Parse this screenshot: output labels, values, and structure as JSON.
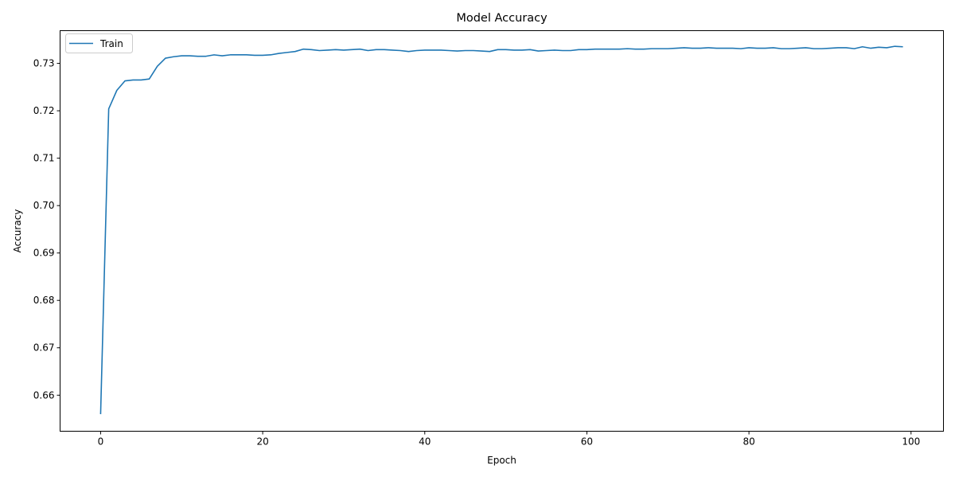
{
  "chart_data": {
    "type": "line",
    "title": "Model Accuracy",
    "xlabel": "Epoch",
    "ylabel": "Accuracy",
    "xlim": [
      -5,
      104
    ],
    "ylim": [
      0.6524,
      0.7369
    ],
    "xticks": [
      0,
      20,
      40,
      60,
      80,
      100
    ],
    "xtick_labels": [
      "0",
      "20",
      "40",
      "60",
      "80",
      "100"
    ],
    "yticks": [
      0.66,
      0.67,
      0.68,
      0.69,
      0.7,
      0.71,
      0.72,
      0.73
    ],
    "ytick_labels": [
      "0.66",
      "0.67",
      "0.68",
      "0.69",
      "0.70",
      "0.71",
      "0.72",
      "0.73"
    ],
    "grid": false,
    "legend_position": "upper-left",
    "series": [
      {
        "name": "Train",
        "color": "#1f77b4",
        "x": [
          0,
          1,
          2,
          3,
          4,
          5,
          6,
          7,
          8,
          9,
          10,
          11,
          12,
          13,
          14,
          15,
          16,
          17,
          18,
          19,
          20,
          21,
          22,
          23,
          24,
          25,
          26,
          27,
          28,
          29,
          30,
          31,
          32,
          33,
          34,
          35,
          36,
          37,
          38,
          39,
          40,
          41,
          42,
          43,
          44,
          45,
          46,
          47,
          48,
          49,
          50,
          51,
          52,
          53,
          54,
          55,
          56,
          57,
          58,
          59,
          60,
          61,
          62,
          63,
          64,
          65,
          66,
          67,
          68,
          69,
          70,
          71,
          72,
          73,
          74,
          75,
          76,
          77,
          78,
          79,
          80,
          81,
          82,
          83,
          84,
          85,
          86,
          87,
          88,
          89,
          90,
          91,
          92,
          93,
          94,
          95,
          96,
          97,
          98,
          99
        ],
        "values": [
          0.656,
          0.7204,
          0.7243,
          0.7263,
          0.7265,
          0.7265,
          0.7267,
          0.7294,
          0.7311,
          0.7314,
          0.7316,
          0.7316,
          0.7315,
          0.7315,
          0.7318,
          0.7316,
          0.7318,
          0.7318,
          0.7318,
          0.7317,
          0.7317,
          0.7318,
          0.7321,
          0.7323,
          0.7325,
          0.733,
          0.7329,
          0.7327,
          0.7328,
          0.7329,
          0.7328,
          0.7329,
          0.733,
          0.7327,
          0.7329,
          0.7329,
          0.7328,
          0.7327,
          0.7325,
          0.7327,
          0.7328,
          0.7328,
          0.7328,
          0.7327,
          0.7326,
          0.7327,
          0.7327,
          0.7326,
          0.7325,
          0.7329,
          0.7329,
          0.7328,
          0.7328,
          0.7329,
          0.7326,
          0.7327,
          0.7328,
          0.7327,
          0.7327,
          0.7329,
          0.7329,
          0.733,
          0.733,
          0.733,
          0.733,
          0.7331,
          0.733,
          0.733,
          0.7331,
          0.7331,
          0.7331,
          0.7332,
          0.7333,
          0.7332,
          0.7332,
          0.7333,
          0.7332,
          0.7332,
          0.7332,
          0.7331,
          0.7333,
          0.7332,
          0.7332,
          0.7333,
          0.7331,
          0.7331,
          0.7332,
          0.7333,
          0.7331,
          0.7331,
          0.7332,
          0.7333,
          0.7333,
          0.7331,
          0.7335,
          0.7332,
          0.7334,
          0.7333,
          0.7336,
          0.7335
        ]
      }
    ]
  }
}
